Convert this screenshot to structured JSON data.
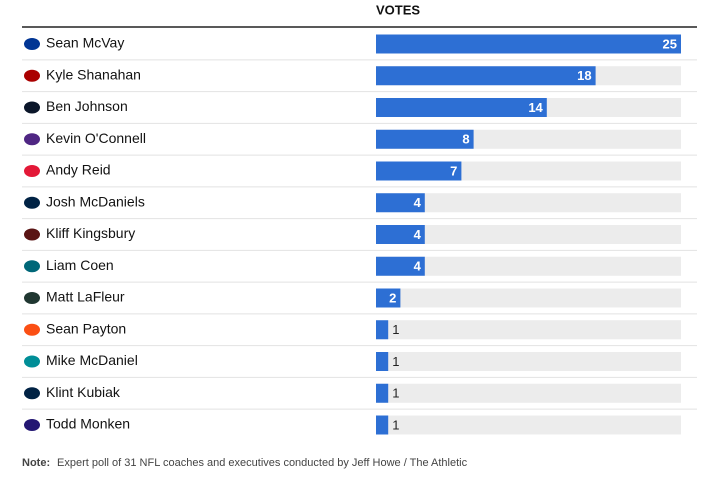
{
  "chart_data": {
    "type": "bar",
    "orientation": "horizontal",
    "value_header": "VOTES",
    "categories": [
      "Sean McVay",
      "Kyle Shanahan",
      "Ben Johnson",
      "Kevin O'Connell",
      "Andy Reid",
      "Josh McDaniels",
      "Kliff Kingsbury",
      "Liam Coen",
      "Matt LaFleur",
      "Sean Payton",
      "Mike McDaniel",
      "Klint Kubiak",
      "Todd Monken"
    ],
    "values": [
      25,
      18,
      14,
      8,
      7,
      4,
      4,
      4,
      2,
      1,
      1,
      1,
      1
    ],
    "color": "#2d6fd4",
    "xlim": [
      0,
      25
    ],
    "note": {
      "label": "Note:",
      "text": "Expert poll of 31 NFL coaches and executives conducted by Jeff Howe / The Athletic"
    }
  }
}
